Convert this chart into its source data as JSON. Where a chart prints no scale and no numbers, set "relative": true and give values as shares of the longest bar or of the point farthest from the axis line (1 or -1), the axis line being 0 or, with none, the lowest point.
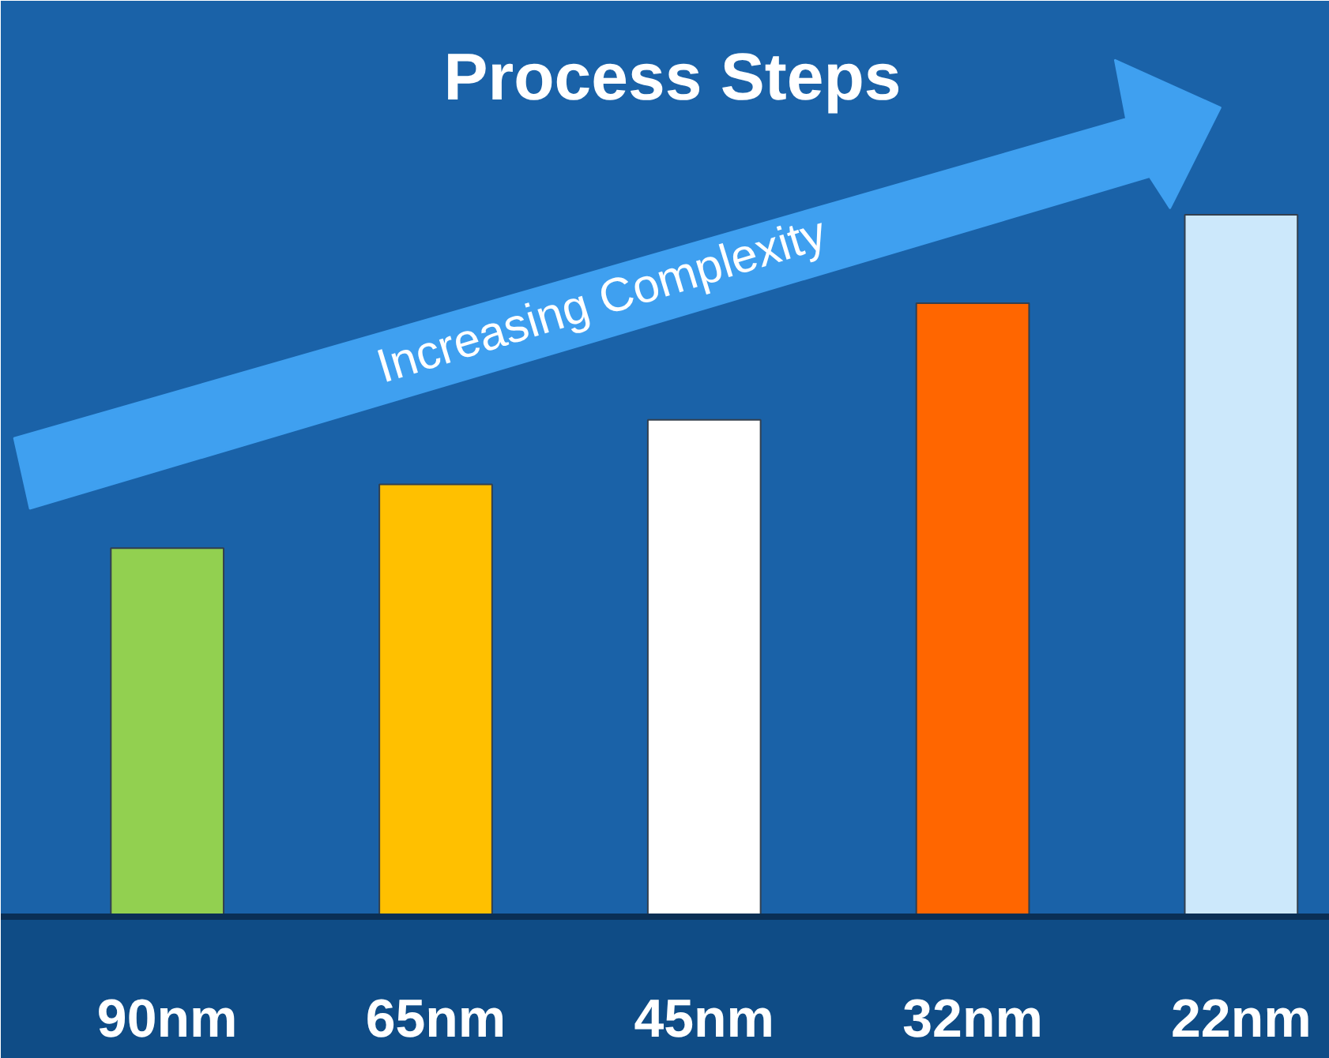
{
  "chart_data": {
    "type": "bar",
    "title": "Process Steps",
    "relative": true,
    "categories": [
      "90nm",
      "65nm",
      "45nm",
      "32nm",
      "22nm"
    ],
    "values": [
      0.525,
      0.616,
      0.708,
      0.874,
      1
    ],
    "colors": [
      "#92d050",
      "#ffc000",
      "#ffffff",
      "#ff6600",
      "#cce8fb"
    ],
    "annotations": [
      "Increasing Complexity"
    ]
  }
}
